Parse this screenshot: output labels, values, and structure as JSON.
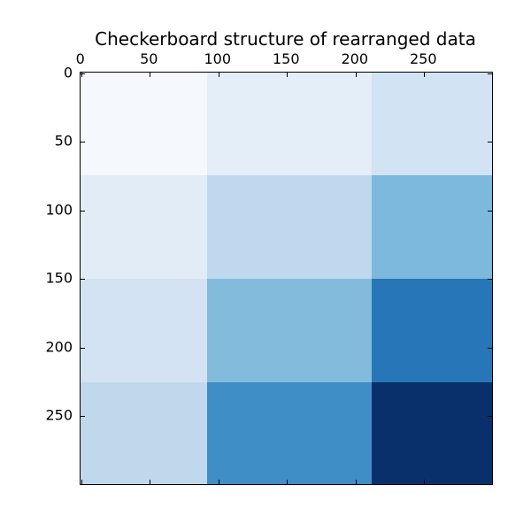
{
  "chart_data": {
    "type": "heatmap",
    "title": "Checkerboard structure of rearranged data",
    "colormap": "Blues",
    "x_ticks": [
      0,
      50,
      100,
      150,
      200,
      250
    ],
    "y_ticks": [
      0,
      50,
      100,
      150,
      200,
      250
    ],
    "x_range": [
      -0.5,
      299.5
    ],
    "y_range": [
      -0.5,
      299.5
    ],
    "n_row_clusters": 4,
    "n_col_clusters": 3,
    "col_boundaries": [
      0,
      92,
      212,
      300
    ],
    "row_boundaries": [
      0,
      75,
      150,
      226,
      300
    ],
    "block_colors": [
      [
        "#f5f9fe",
        "#e4eef9",
        "#d2e3f3"
      ],
      [
        "#e1ecf7",
        "#bfd8ed",
        "#7db9dc"
      ],
      [
        "#d3e3f3",
        "#82bbdb",
        "#2676b8"
      ],
      [
        "#c0d8ec",
        "#3f8ec5",
        "#09306b"
      ]
    ],
    "legend": "none",
    "grid": false
  },
  "colors": {
    "background": "#ffffff",
    "axes_border": "#000000",
    "text": "#000000"
  }
}
